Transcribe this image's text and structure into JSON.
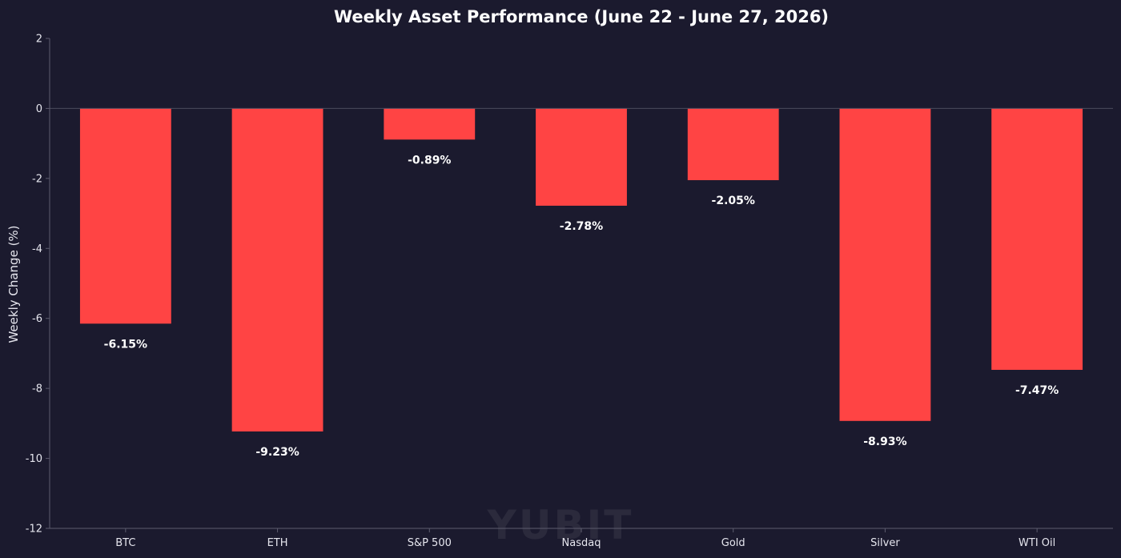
{
  "watermark": "YUBIT",
  "colors": {
    "background": "#1b1a2e",
    "bar": "#ff4444",
    "axis": "#5c5c6e",
    "zero_line": "#4a4a5c",
    "text": "#e6e6ee"
  },
  "chart_data": {
    "type": "bar",
    "title": "Weekly Asset Performance (June 22 - June 27, 2026)",
    "xlabel": "",
    "ylabel": "Weekly Change (%)",
    "ylim": [
      -12,
      2
    ],
    "yticks": [
      2,
      0,
      -2,
      -4,
      -6,
      -8,
      -10,
      -12
    ],
    "grid": false,
    "categories": [
      "BTC",
      "ETH",
      "S&P 500",
      "Nasdaq",
      "Gold",
      "Silver",
      "WTI Oil"
    ],
    "values": [
      -6.15,
      -9.23,
      -0.89,
      -2.78,
      -2.05,
      -8.93,
      -7.47
    ],
    "data_labels": [
      "-6.15%",
      "-9.23%",
      "-0.89%",
      "-2.78%",
      "-2.05%",
      "-8.93%",
      "-7.47%"
    ]
  }
}
